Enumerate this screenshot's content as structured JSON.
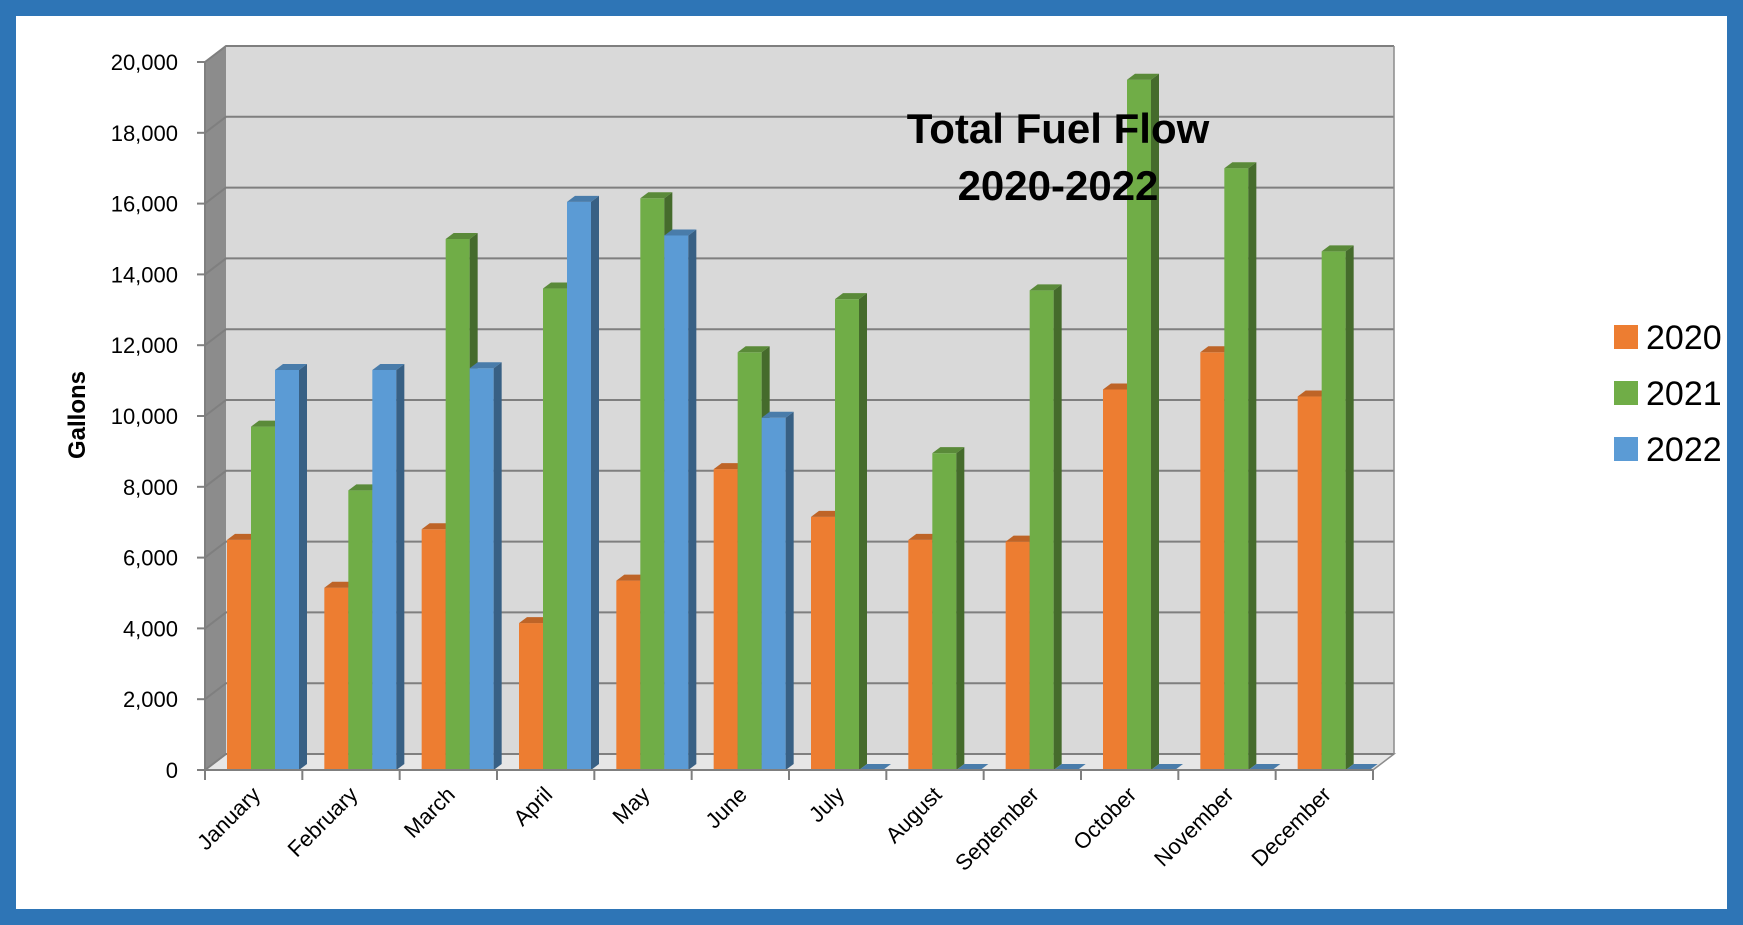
{
  "chart_data": {
    "type": "bar",
    "title": "Total Fuel Flow",
    "subtitle": "2020-2022",
    "xlabel": "",
    "ylabel": "Gallons",
    "ylim": [
      0,
      20000
    ],
    "yticks": [
      "0",
      "2,000",
      "4,000",
      "6,000",
      "8,000",
      "10,000",
      "12,000",
      "14,000",
      "16,000",
      "18,000",
      "20,000"
    ],
    "categories": [
      "January",
      "February",
      "March",
      "April",
      "May",
      "June",
      "July",
      "August",
      "September",
      "October",
      "November",
      "December"
    ],
    "series": [
      {
        "name": "2020",
        "color": "#ed7d31",
        "values": [
          6500,
          5150,
          6800,
          4150,
          5350,
          8500,
          7150,
          6500,
          6450,
          10750,
          11800,
          10550
        ]
      },
      {
        "name": "2021",
        "color": "#70ad47",
        "values": [
          9700,
          7900,
          15000,
          13600,
          16150,
          11800,
          13300,
          8950,
          13550,
          19500,
          17000,
          14650
        ]
      },
      {
        "name": "2022",
        "color": "#5b9bd5",
        "values": [
          11300,
          11300,
          11350,
          16050,
          15100,
          9950,
          0,
          0,
          0,
          0,
          0,
          0
        ]
      }
    ],
    "grid": true,
    "legend_position": "right",
    "style": "3d-clustered-column"
  }
}
